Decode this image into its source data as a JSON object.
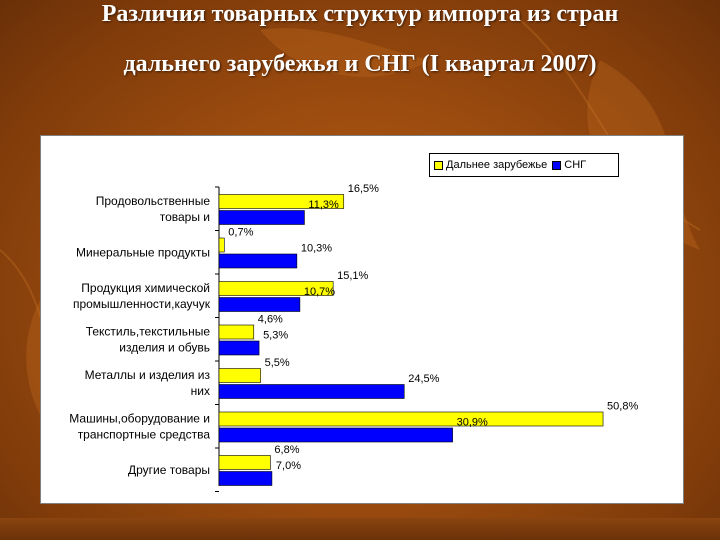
{
  "slide": {
    "title_line1": "Различия товарных структур импорта из стран",
    "title_line2": "дальнего зарубежья и СНГ (I квартал 2007)"
  },
  "colors": {
    "background": "#9c4c0f",
    "series_far_abroad": "#ffff00",
    "series_cis": "#0000ff"
  },
  "chart_data": {
    "type": "bar",
    "orientation": "horizontal",
    "categories": [
      [
        "Продовольственные",
        "товары и"
      ],
      [
        "Минеральные продукты"
      ],
      [
        "Продукция химической",
        "промышленности,каучук"
      ],
      [
        "Текстиль,текстильные",
        "изделия и обувь"
      ],
      [
        "Металлы и изделия из",
        "них"
      ],
      [
        "Машины,оборудование и",
        "транспортные средства"
      ],
      [
        "Другие товары"
      ]
    ],
    "series": [
      {
        "name": "Дальнее зарубежье",
        "values": [
          16.5,
          0.7,
          15.1,
          4.6,
          5.5,
          50.8,
          6.8
        ],
        "labels": [
          "16,5%",
          "0,7%",
          "15,1%",
          "4,6%",
          "5,5%",
          "50,8%",
          "6,8%"
        ]
      },
      {
        "name": "СНГ",
        "values": [
          11.3,
          10.3,
          10.7,
          5.3,
          24.5,
          30.9,
          7.0
        ],
        "labels": [
          "11,3%",
          "10,3%",
          "10,7%",
          "5,3%",
          "24,5%",
          "30,9%",
          "7,0%"
        ]
      }
    ],
    "legend_position": "top-right",
    "grid": false
  }
}
